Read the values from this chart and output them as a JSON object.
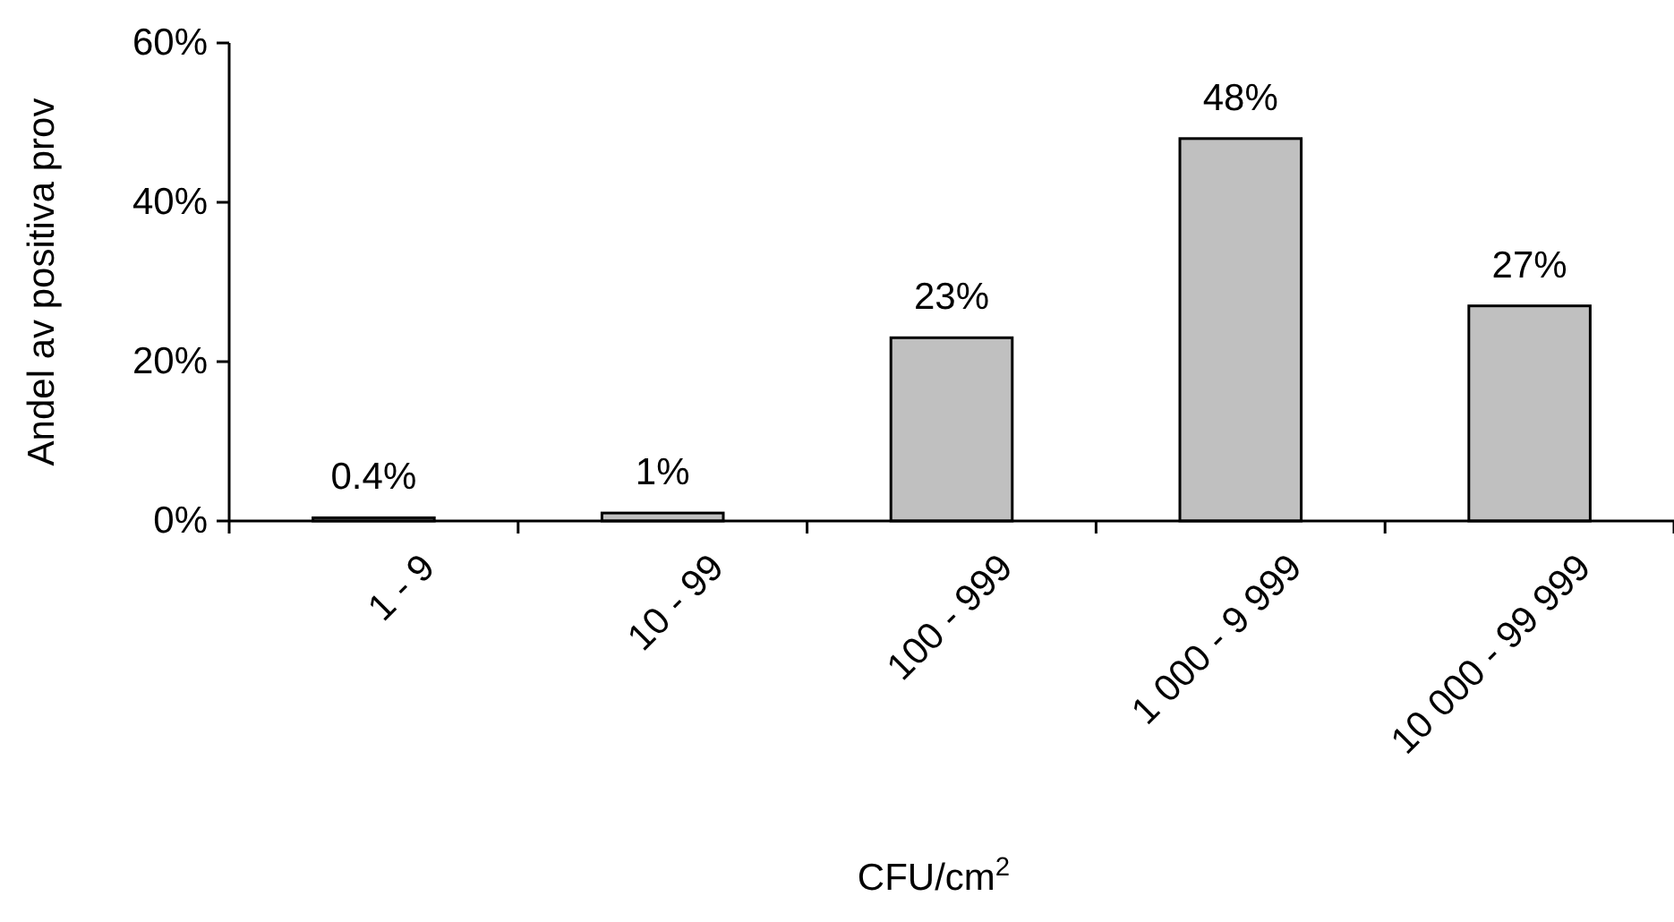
{
  "chart_data": {
    "type": "bar",
    "categories": [
      "1 - 9",
      "10 - 99",
      "100 - 999",
      "1 000 - 9 999",
      "10 000 - 99 999"
    ],
    "values": [
      0.4,
      1,
      23,
      48,
      27
    ],
    "value_labels": [
      "0.4%",
      "1%",
      "23%",
      "48%",
      "27%"
    ],
    "color": "#c0c0c0",
    "ylim": [
      0,
      60
    ],
    "yticks": [
      {
        "value": 0,
        "label": "0%"
      },
      {
        "value": 20,
        "label": "20%"
      },
      {
        "value": 40,
        "label": "40%"
      },
      {
        "value": 60,
        "label": "60%"
      }
    ],
    "xlabel": "CFU/cm$^{2}$",
    "ylabel": "Andel av positiva prov",
    "grid": false
  }
}
